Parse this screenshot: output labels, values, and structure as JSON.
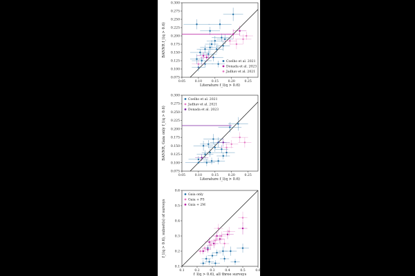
{
  "figure": {
    "background": "#000000",
    "colors": {
      "blue": "#1f6fa6",
      "pink": "#e377c2",
      "magenta": "#b5179e",
      "purple": "#7b1fa2",
      "line": "#111111"
    }
  },
  "chart_data": [
    {
      "type": "scatter",
      "xlabel": "Literature f_l(q > 0.6)",
      "ylabel": "BANNR f_l(q > 0.6)",
      "xlim": [
        0.05,
        0.28
      ],
      "ylim": [
        0.075,
        0.3
      ],
      "xticks": [
        {
          "v": 0.05,
          "label": "0.05"
        },
        {
          "v": 0.1,
          "label": "0.10"
        },
        {
          "v": 0.15,
          "label": "0.15"
        },
        {
          "v": 0.2,
          "label": "0.20"
        },
        {
          "v": 0.25,
          "label": "0.25"
        }
      ],
      "yticks": [
        {
          "v": 0.075,
          "label": "0.075"
        },
        {
          "v": 0.1,
          "label": "0.100"
        },
        {
          "v": 0.125,
          "label": "0.125"
        },
        {
          "v": 0.15,
          "label": "0.150"
        },
        {
          "v": 0.175,
          "label": "0.175"
        },
        {
          "v": 0.2,
          "label": "0.200"
        },
        {
          "v": 0.225,
          "label": "0.225"
        },
        {
          "v": 0.25,
          "label": "0.250"
        },
        {
          "v": 0.275,
          "label": "0.275"
        },
        {
          "v": 0.3,
          "label": "0.300"
        }
      ],
      "one_to_one_line": true,
      "legend_position": "lower-right",
      "series": [
        {
          "name": "Coelho et al. 2021",
          "color": "#1f6fa6",
          "points": [
            {
              "x": 0.095,
              "y": 0.235,
              "ex": 0.04,
              "ey": 0.015
            },
            {
              "x": 0.135,
              "y": 0.215,
              "ex": 0.03,
              "ey": 0.012
            },
            {
              "x": 0.165,
              "y": 0.235,
              "ex": 0.035,
              "ey": 0.015
            },
            {
              "x": 0.205,
              "y": 0.265,
              "ex": 0.03,
              "ey": 0.02
            },
            {
              "x": 0.17,
              "y": 0.195,
              "ex": 0.03,
              "ey": 0.012
            },
            {
              "x": 0.15,
              "y": 0.185,
              "ex": 0.025,
              "ey": 0.015
            },
            {
              "x": 0.175,
              "y": 0.17,
              "ex": 0.02,
              "ey": 0.015
            },
            {
              "x": 0.135,
              "y": 0.165,
              "ex": 0.03,
              "ey": 0.015
            },
            {
              "x": 0.12,
              "y": 0.16,
              "ex": 0.025,
              "ey": 0.012
            },
            {
              "x": 0.105,
              "y": 0.15,
              "ex": 0.03,
              "ey": 0.01
            },
            {
              "x": 0.13,
              "y": 0.145,
              "ex": 0.025,
              "ey": 0.012
            },
            {
              "x": 0.145,
              "y": 0.135,
              "ex": 0.03,
              "ey": 0.012
            },
            {
              "x": 0.095,
              "y": 0.13,
              "ex": 0.02,
              "ey": 0.015
            },
            {
              "x": 0.11,
              "y": 0.125,
              "ex": 0.03,
              "ey": 0.012
            },
            {
              "x": 0.12,
              "y": 0.115,
              "ex": 0.025,
              "ey": 0.01
            },
            {
              "x": 0.1,
              "y": 0.105,
              "ex": 0.02,
              "ey": 0.012
            },
            {
              "x": 0.16,
              "y": 0.115,
              "ex": 0.02,
              "ey": 0.01
            },
            {
              "x": 0.155,
              "y": 0.16,
              "ex": 0.02,
              "ey": 0.012
            },
            {
              "x": 0.18,
              "y": 0.19,
              "ex": 0.025,
              "ey": 0.015
            },
            {
              "x": 0.14,
              "y": 0.175,
              "ex": 0.02,
              "ey": 0.012
            }
          ]
        },
        {
          "name": "Donada et al. 2023",
          "color": "#b5179e",
          "points": [
            {
              "x": 0.08,
              "y": 0.205,
              "ex": 0.0,
              "ey": 0.0,
              "hline": [
                0.05,
                0.2
              ]
            },
            {
              "x": 0.205,
              "y": 0.205,
              "ex": 0.02,
              "ey": 0.015
            },
            {
              "x": 0.225,
              "y": 0.215,
              "ex": 0.02,
              "ey": 0.015
            },
            {
              "x": 0.125,
              "y": 0.135,
              "ex": 0.02,
              "ey": 0.012
            },
            {
              "x": 0.115,
              "y": 0.14,
              "ex": 0.02,
              "ey": 0.01
            }
          ]
        },
        {
          "name": "Jadhav et al. 2021",
          "color": "#e377c2",
          "points": [
            {
              "x": 0.235,
              "y": 0.19,
              "ex": 0.025,
              "ey": 0.015
            },
            {
              "x": 0.215,
              "y": 0.175,
              "ex": 0.02,
              "ey": 0.015
            },
            {
              "x": 0.245,
              "y": 0.2,
              "ex": 0.02,
              "ey": 0.012
            },
            {
              "x": 0.195,
              "y": 0.185,
              "ex": 0.02,
              "ey": 0.012
            },
            {
              "x": 0.1,
              "y": 0.115,
              "ex": 0.02,
              "ey": 0.012
            }
          ]
        }
      ]
    },
    {
      "type": "scatter",
      "xlabel": "Literature f_l(q > 0.6)",
      "ylabel": "BANNR, Gaia only f_l(q > 0.6)",
      "xlim": [
        0.05,
        0.28
      ],
      "ylim": [
        0.075,
        0.3
      ],
      "xticks": [
        {
          "v": 0.05,
          "label": "0.05"
        },
        {
          "v": 0.1,
          "label": "0.10"
        },
        {
          "v": 0.15,
          "label": "0.15"
        },
        {
          "v": 0.2,
          "label": "0.20"
        },
        {
          "v": 0.25,
          "label": "0.25"
        }
      ],
      "yticks": [
        {
          "v": 0.075,
          "label": "0.075"
        },
        {
          "v": 0.1,
          "label": "0.100"
        },
        {
          "v": 0.125,
          "label": "0.125"
        },
        {
          "v": 0.15,
          "label": "0.150"
        },
        {
          "v": 0.175,
          "label": "0.175"
        },
        {
          "v": 0.2,
          "label": "0.200"
        },
        {
          "v": 0.225,
          "label": "0.225"
        },
        {
          "v": 0.25,
          "label": "0.250"
        },
        {
          "v": 0.275,
          "label": "0.275"
        },
        {
          "v": 0.3,
          "label": "0.300"
        }
      ],
      "one_to_one_line": true,
      "legend_position": "upper-left",
      "series": [
        {
          "name": "Coelho et al. 2021",
          "color": "#1f6fa6",
          "points": [
            {
              "x": 0.195,
              "y": 0.205,
              "ex": 0.035,
              "ey": 0.015
            },
            {
              "x": 0.22,
              "y": 0.215,
              "ex": 0.03,
              "ey": 0.02
            },
            {
              "x": 0.145,
              "y": 0.17,
              "ex": 0.03,
              "ey": 0.015
            },
            {
              "x": 0.16,
              "y": 0.16,
              "ex": 0.025,
              "ey": 0.015
            },
            {
              "x": 0.13,
              "y": 0.155,
              "ex": 0.025,
              "ey": 0.012
            },
            {
              "x": 0.115,
              "y": 0.15,
              "ex": 0.03,
              "ey": 0.015
            },
            {
              "x": 0.15,
              "y": 0.145,
              "ex": 0.02,
              "ey": 0.012
            },
            {
              "x": 0.17,
              "y": 0.14,
              "ex": 0.02,
              "ey": 0.012
            },
            {
              "x": 0.135,
              "y": 0.13,
              "ex": 0.025,
              "ey": 0.012
            },
            {
              "x": 0.185,
              "y": 0.13,
              "ex": 0.025,
              "ey": 0.012
            },
            {
              "x": 0.12,
              "y": 0.125,
              "ex": 0.025,
              "ey": 0.012
            },
            {
              "x": 0.175,
              "y": 0.12,
              "ex": 0.02,
              "ey": 0.01
            },
            {
              "x": 0.1,
              "y": 0.11,
              "ex": 0.03,
              "ey": 0.01
            },
            {
              "x": 0.14,
              "y": 0.105,
              "ex": 0.025,
              "ey": 0.01
            },
            {
              "x": 0.16,
              "y": 0.105,
              "ex": 0.02,
              "ey": 0.01
            },
            {
              "x": 0.125,
              "y": 0.1,
              "ex": 0.025,
              "ey": 0.01
            },
            {
              "x": 0.1,
              "y": 0.1,
              "ex": 0.04,
              "ey": 0.0
            }
          ]
        },
        {
          "name": "Jadhav et al. 2021",
          "color": "#e377c2",
          "points": [
            {
              "x": 0.225,
              "y": 0.175,
              "ex": 0.025,
              "ey": 0.015
            },
            {
              "x": 0.24,
              "y": 0.16,
              "ex": 0.02,
              "ey": 0.015
            },
            {
              "x": 0.2,
              "y": 0.155,
              "ex": 0.02,
              "ey": 0.012
            },
            {
              "x": 0.185,
              "y": 0.145,
              "ex": 0.02,
              "ey": 0.012
            }
          ]
        },
        {
          "name": "Donada et al. 2023",
          "color": "#7b1fa2",
          "points": [
            {
              "x": 0.08,
              "y": 0.21,
              "ex": 0.0,
              "ey": 0.0,
              "hline": [
                0.05,
                0.2
              ]
            },
            {
              "x": 0.11,
              "y": 0.115,
              "ex": 0.02,
              "ey": 0.01
            },
            {
              "x": 0.175,
              "y": 0.16,
              "ex": 0.02,
              "ey": 0.012
            }
          ]
        }
      ]
    },
    {
      "type": "scatter",
      "xlabel": "f_l(q > 0.6), all three surveys",
      "ylabel": "f_l(q > 0.6), subset(s) of surveys",
      "xlim": [
        0.1,
        0.6
      ],
      "ylim": [
        0.1,
        0.6
      ],
      "xticks": [
        {
          "v": 0.1,
          "label": "0.1"
        },
        {
          "v": 0.2,
          "label": "0.2"
        },
        {
          "v": 0.3,
          "label": "0.3"
        },
        {
          "v": 0.4,
          "label": "0.4"
        },
        {
          "v": 0.5,
          "label": "0.5"
        },
        {
          "v": 0.6,
          "label": "0.6"
        }
      ],
      "yticks": [
        {
          "v": 0.1,
          "label": "0.1"
        },
        {
          "v": 0.2,
          "label": "0.2"
        },
        {
          "v": 0.3,
          "label": "0.3"
        },
        {
          "v": 0.4,
          "label": "0.4"
        },
        {
          "v": 0.5,
          "label": "0.5"
        },
        {
          "v": 0.6,
          "label": "0.6"
        }
      ],
      "one_to_one_line": true,
      "legend_position": "upper-left",
      "series": [
        {
          "name": "Gaia only",
          "color": "#1f6fa6",
          "points": [
            {
              "x": 0.5,
              "y": 0.22,
              "ex": 0.04,
              "ey": 0.03
            },
            {
              "x": 0.42,
              "y": 0.2,
              "ex": 0.04,
              "ey": 0.03
            },
            {
              "x": 0.37,
              "y": 0.2,
              "ex": 0.03,
              "ey": 0.03
            },
            {
              "x": 0.33,
              "y": 0.19,
              "ex": 0.03,
              "ey": 0.02
            },
            {
              "x": 0.3,
              "y": 0.17,
              "ex": 0.03,
              "ey": 0.02
            },
            {
              "x": 0.26,
              "y": 0.15,
              "ex": 0.03,
              "ey": 0.02
            },
            {
              "x": 0.38,
              "y": 0.15,
              "ex": 0.03,
              "ey": 0.02
            },
            {
              "x": 0.28,
              "y": 0.13,
              "ex": 0.03,
              "ey": 0.02
            },
            {
              "x": 0.24,
              "y": 0.12,
              "ex": 0.02,
              "ey": 0.02
            },
            {
              "x": 0.32,
              "y": 0.12,
              "ex": 0.03,
              "ey": 0.02
            },
            {
              "x": 0.45,
              "y": 0.13,
              "ex": 0.03,
              "ey": 0.02
            },
            {
              "x": 0.27,
              "y": 0.22,
              "ex": 0.02,
              "ey": 0.02
            }
          ]
        },
        {
          "name": "Gaia + PS",
          "color": "#e377c2",
          "points": [
            {
              "x": 0.5,
              "y": 0.42,
              "ex": 0.03,
              "ey": 0.04
            },
            {
              "x": 0.41,
              "y": 0.33,
              "ex": 0.04,
              "ey": 0.03
            },
            {
              "x": 0.36,
              "y": 0.3,
              "ex": 0.03,
              "ey": 0.03
            },
            {
              "x": 0.32,
              "y": 0.27,
              "ex": 0.03,
              "ey": 0.03
            },
            {
              "x": 0.29,
              "y": 0.24,
              "ex": 0.03,
              "ey": 0.03
            },
            {
              "x": 0.25,
              "y": 0.22,
              "ex": 0.02,
              "ey": 0.02
            },
            {
              "x": 0.38,
              "y": 0.25,
              "ex": 0.03,
              "ey": 0.03
            },
            {
              "x": 0.22,
              "y": 0.2,
              "ex": 0.02,
              "ey": 0.02
            },
            {
              "x": 0.34,
              "y": 0.35,
              "ex": 0.03,
              "ey": 0.03
            }
          ]
        },
        {
          "name": "Gaia + 2M",
          "color": "#b5179e",
          "points": [
            {
              "x": 0.5,
              "y": 0.35,
              "ex": 0.03,
              "ey": 0.04
            },
            {
              "x": 0.4,
              "y": 0.31,
              "ex": 0.04,
              "ey": 0.03
            },
            {
              "x": 0.35,
              "y": 0.28,
              "ex": 0.03,
              "ey": 0.03
            },
            {
              "x": 0.31,
              "y": 0.25,
              "ex": 0.03,
              "ey": 0.03
            },
            {
              "x": 0.28,
              "y": 0.26,
              "ex": 0.03,
              "ey": 0.03
            },
            {
              "x": 0.24,
              "y": 0.2,
              "ex": 0.02,
              "ey": 0.02
            },
            {
              "x": 0.33,
              "y": 0.3,
              "ex": 0.03,
              "ey": 0.03
            },
            {
              "x": 0.27,
              "y": 0.21,
              "ex": 0.02,
              "ey": 0.02
            }
          ]
        }
      ]
    }
  ]
}
